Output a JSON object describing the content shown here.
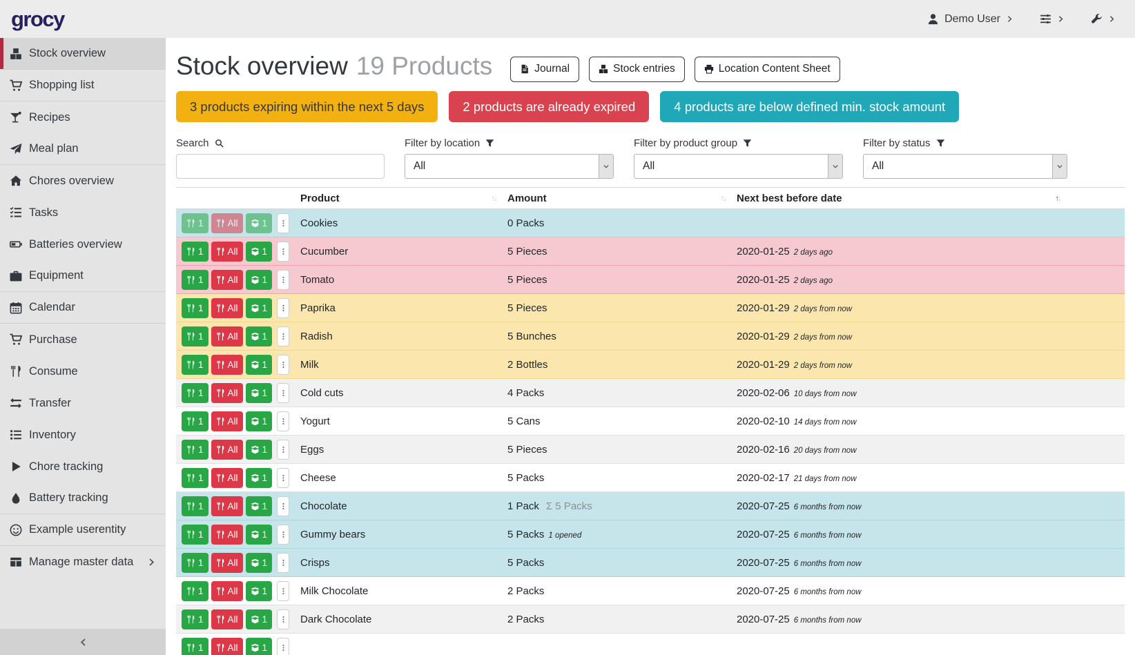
{
  "colors": {
    "accent_red": "#b02b42",
    "logo_navy": "#25205e",
    "alert_yellow": "#f2b111",
    "alert_red": "#d9434f",
    "alert_teal": "#20a8b8",
    "row_below_min_stock": "#c5e5eb",
    "row_expired": "#f6c9d0",
    "row_expiring_soon": "#fbe7ae",
    "action_green": "#29a746",
    "action_red": "#dc3848"
  },
  "navbar": {
    "logo": "grocy",
    "user_label": "Demo User",
    "user_icon": "user",
    "settings_icon": "sliders",
    "admin_icon": "wrench"
  },
  "sidebar": {
    "items": [
      {
        "label": "Stock overview",
        "icon": "boxes",
        "active": true,
        "divider_after": true
      },
      {
        "label": "Shopping list",
        "icon": "cart",
        "divider_after": true
      },
      {
        "label": "Recipes",
        "icon": "cocktail"
      },
      {
        "label": "Meal plan",
        "icon": "paper-plane",
        "divider_after": true
      },
      {
        "label": "Chores overview",
        "icon": "home"
      },
      {
        "label": "Tasks",
        "icon": "tasks"
      },
      {
        "label": "Batteries overview",
        "icon": "battery"
      },
      {
        "label": "Equipment",
        "icon": "toolbox",
        "divider_after": true
      },
      {
        "label": "Calendar",
        "icon": "calendar",
        "divider_after": true
      },
      {
        "label": "Purchase",
        "icon": "cart"
      },
      {
        "label": "Consume",
        "icon": "utensils"
      },
      {
        "label": "Transfer",
        "icon": "exchange"
      },
      {
        "label": "Inventory",
        "icon": "list"
      },
      {
        "label": "Chore tracking",
        "icon": "play"
      },
      {
        "label": "Battery tracking",
        "icon": "tint",
        "divider_after": true
      },
      {
        "label": "Example userentity",
        "icon": "smile",
        "divider_after": true
      },
      {
        "label": "Manage master data",
        "icon": "table",
        "has_submenu": true
      }
    ]
  },
  "page": {
    "title": "Stock overview",
    "subtitle": "19 Products",
    "buttons": [
      {
        "label": "Journal",
        "icon": "file"
      },
      {
        "label": "Stock entries",
        "icon": "boxes"
      },
      {
        "label": "Location Content Sheet",
        "icon": "print"
      }
    ],
    "alerts": [
      {
        "name": "expiring-soon-alert",
        "text": "3 products expiring within the next 5 days",
        "color": "#f2b111",
        "text_color": "#32383e"
      },
      {
        "name": "expired-alert",
        "text": "2 products are already expired",
        "color": "#d9434f",
        "text_color": "#ffffff"
      },
      {
        "name": "below-min-stock-alert",
        "text": "4 products are below defined min. stock amount",
        "color": "#20a8b8",
        "text_color": "#ffffff"
      }
    ],
    "filters": {
      "search_label": "Search",
      "search_value": "",
      "location_label": "Filter by location",
      "location_value": "All",
      "product_group_label": "Filter by product group",
      "product_group_value": "All",
      "status_label": "Filter by status",
      "status_value": "All"
    }
  },
  "table": {
    "columns": [
      {
        "label": "Product",
        "sort": "none"
      },
      {
        "label": "Amount",
        "sort": "none"
      },
      {
        "label": "Next best before date",
        "sort": "asc"
      }
    ],
    "row_actions": {
      "consume_one": "1",
      "consume_all": "All",
      "open_one": "1"
    },
    "rows": [
      {
        "product": "Cookies",
        "amount": "0 Packs",
        "amount_extra": "",
        "amount_extra_kind": "",
        "date": "",
        "timeago": "",
        "status": "below-min",
        "muted_actions": true
      },
      {
        "product": "Cucumber",
        "amount": "5 Pieces",
        "amount_extra": "",
        "amount_extra_kind": "",
        "date": "2020-01-25",
        "timeago": "2 days ago",
        "status": "expired"
      },
      {
        "product": "Tomato",
        "amount": "5 Pieces",
        "amount_extra": "",
        "amount_extra_kind": "",
        "date": "2020-01-25",
        "timeago": "2 days ago",
        "status": "expired"
      },
      {
        "product": "Paprika",
        "amount": "5 Pieces",
        "amount_extra": "",
        "amount_extra_kind": "",
        "date": "2020-01-29",
        "timeago": "2 days from now",
        "status": "expiring"
      },
      {
        "product": "Radish",
        "amount": "5 Bunches",
        "amount_extra": "",
        "amount_extra_kind": "",
        "date": "2020-01-29",
        "timeago": "2 days from now",
        "status": "expiring"
      },
      {
        "product": "Milk",
        "amount": "2 Bottles",
        "amount_extra": "",
        "amount_extra_kind": "",
        "date": "2020-01-29",
        "timeago": "2 days from now",
        "status": "expiring"
      },
      {
        "product": "Cold cuts",
        "amount": "4 Packs",
        "amount_extra": "",
        "amount_extra_kind": "",
        "date": "2020-02-06",
        "timeago": "10 days from now",
        "status": "none"
      },
      {
        "product": "Yogurt",
        "amount": "5 Cans",
        "amount_extra": "",
        "amount_extra_kind": "",
        "date": "2020-02-10",
        "timeago": "14 days from now",
        "status": "none"
      },
      {
        "product": "Eggs",
        "amount": "5 Pieces",
        "amount_extra": "",
        "amount_extra_kind": "",
        "date": "2020-02-16",
        "timeago": "20 days from now",
        "status": "none"
      },
      {
        "product": "Cheese",
        "amount": "5 Packs",
        "amount_extra": "",
        "amount_extra_kind": "",
        "date": "2020-02-17",
        "timeago": "21 days from now",
        "status": "none"
      },
      {
        "product": "Chocolate",
        "amount": "1 Pack",
        "amount_extra": "Σ 5 Packs",
        "amount_extra_kind": "sum",
        "date": "2020-07-25",
        "timeago": "6 months from now",
        "status": "below-min"
      },
      {
        "product": "Gummy bears",
        "amount": "5 Packs",
        "amount_extra": "1 opened",
        "amount_extra_kind": "opened",
        "date": "2020-07-25",
        "timeago": "6 months from now",
        "status": "below-min"
      },
      {
        "product": "Crisps",
        "amount": "5 Packs",
        "amount_extra": "",
        "amount_extra_kind": "",
        "date": "2020-07-25",
        "timeago": "6 months from now",
        "status": "below-min"
      },
      {
        "product": "Milk Chocolate",
        "amount": "2 Packs",
        "amount_extra": "",
        "amount_extra_kind": "",
        "date": "2020-07-25",
        "timeago": "6 months from now",
        "status": "none"
      },
      {
        "product": "Dark Chocolate",
        "amount": "2 Packs",
        "amount_extra": "",
        "amount_extra_kind": "",
        "date": "2020-07-25",
        "timeago": "6 months from now",
        "status": "none"
      },
      {
        "product": "",
        "amount": "",
        "amount_extra": "",
        "amount_extra_kind": "",
        "date": "",
        "timeago": "",
        "status": "none",
        "partial": true
      }
    ]
  }
}
